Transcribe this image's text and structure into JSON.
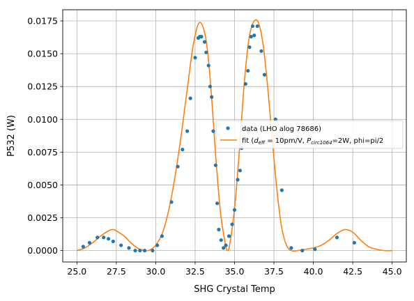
{
  "chart_data": {
    "type": "scatter",
    "title": "",
    "xlabel": "SHG Crystal Temp",
    "ylabel": "P532 (W)",
    "xlim": [
      24.1,
      45.9
    ],
    "ylim": [
      -0.00087,
      0.01835
    ],
    "xticks": [
      25.0,
      27.5,
      30.0,
      32.5,
      35.0,
      37.5,
      40.0,
      42.5,
      45.0
    ],
    "xtick_labels": [
      "25.0",
      "27.5",
      "30.0",
      "32.5",
      "35.0",
      "37.5",
      "40.0",
      "42.5",
      "45.0"
    ],
    "yticks": [
      0.0,
      0.0025,
      0.005,
      0.0075,
      0.01,
      0.0125,
      0.015,
      0.0175
    ],
    "ytick_labels": [
      "0.0000",
      "0.0025",
      "0.0050",
      "0.0075",
      "0.0100",
      "0.0125",
      "0.0150",
      "0.0175"
    ],
    "grid": true,
    "legend_position": "center-right",
    "series": [
      {
        "name": "data (LHO alog 78686)",
        "kind": "scatter",
        "color": "#1f77b4",
        "points": [
          [
            25.4,
            0.0003
          ],
          [
            25.8,
            0.0006
          ],
          [
            26.3,
            0.001
          ],
          [
            26.7,
            0.001
          ],
          [
            27.0,
            0.0009
          ],
          [
            27.3,
            0.0007
          ],
          [
            27.8,
            0.0004
          ],
          [
            28.3,
            0.0002
          ],
          [
            28.7,
            0.0
          ],
          [
            29.0,
            0.0
          ],
          [
            29.3,
            0.0
          ],
          [
            29.8,
            0.0
          ],
          [
            30.1,
            0.0004
          ],
          [
            30.4,
            0.0011
          ],
          [
            31.0,
            0.0037
          ],
          [
            31.4,
            0.0064
          ],
          [
            31.7,
            0.0077
          ],
          [
            32.0,
            0.0091
          ],
          [
            32.2,
            0.0116
          ],
          [
            32.5,
            0.0147
          ],
          [
            32.7,
            0.0162
          ],
          [
            32.8,
            0.0163
          ],
          [
            32.9,
            0.0163
          ],
          [
            33.1,
            0.0159
          ],
          [
            33.2,
            0.0151
          ],
          [
            33.35,
            0.0141
          ],
          [
            33.45,
            0.0125
          ],
          [
            33.55,
            0.0117
          ],
          [
            33.65,
            0.0091
          ],
          [
            33.8,
            0.0065
          ],
          [
            33.9,
            0.0036
          ],
          [
            34.0,
            0.0016
          ],
          [
            34.15,
            0.0008
          ],
          [
            34.3,
            0.0002
          ],
          [
            34.45,
            0.0004
          ],
          [
            34.65,
            0.0011
          ],
          [
            34.85,
            0.002
          ],
          [
            35.0,
            0.0031
          ],
          [
            35.2,
            0.0054
          ],
          [
            35.35,
            0.0061
          ],
          [
            35.45,
            0.0078
          ],
          [
            35.6,
            0.0093
          ],
          [
            35.7,
            0.0127
          ],
          [
            35.85,
            0.0137
          ],
          [
            35.95,
            0.0155
          ],
          [
            36.05,
            0.0163
          ],
          [
            36.15,
            0.0171
          ],
          [
            36.25,
            0.0164
          ],
          [
            36.45,
            0.0171
          ],
          [
            36.7,
            0.0152
          ],
          [
            36.9,
            0.0134
          ],
          [
            37.6,
            0.01
          ],
          [
            38.0,
            0.0046
          ],
          [
            38.6,
            0.0002
          ],
          [
            39.3,
            0.0
          ],
          [
            40.1,
            0.0001
          ],
          [
            41.5,
            0.001
          ],
          [
            42.6,
            0.0006
          ]
        ]
      },
      {
        "name": "fit (d_eff = 10pm/V, P_circ1064=2W, phi=pi/2",
        "kind": "line",
        "color": "#ff7f0e",
        "x": [
          25.0,
          25.5,
          26.0,
          26.5,
          27.0,
          27.3,
          27.5,
          28.0,
          28.5,
          29.0,
          29.5,
          30.0,
          30.5,
          31.0,
          31.5,
          32.0,
          32.4,
          32.8,
          33.2,
          33.5,
          33.8,
          34.1,
          34.4,
          34.55,
          34.7,
          35.0,
          35.3,
          35.6,
          35.9,
          36.2,
          36.5,
          36.8,
          37.1,
          37.4,
          37.7,
          38.0,
          38.3,
          38.6,
          39.0,
          39.5,
          40.0,
          40.5,
          41.0,
          41.5,
          42.0,
          42.5,
          43.0,
          43.5,
          44.0,
          44.5,
          45.0
        ],
        "y": [
          0.0,
          0.0002,
          0.0006,
          0.0011,
          0.0015,
          0.0016,
          0.0015,
          0.0011,
          0.0005,
          0.0001,
          0.0,
          0.0004,
          0.0016,
          0.0041,
          0.0078,
          0.0123,
          0.0158,
          0.0174,
          0.016,
          0.0124,
          0.0073,
          0.003,
          0.0006,
          0.0,
          0.0005,
          0.0032,
          0.0075,
          0.0125,
          0.016,
          0.0174,
          0.0174,
          0.0158,
          0.0125,
          0.0084,
          0.0045,
          0.0017,
          0.0004,
          0.0,
          0.0,
          0.0001,
          0.0002,
          0.0004,
          0.0008,
          0.0013,
          0.0016,
          0.0014,
          0.0008,
          0.0003,
          0.0001,
          0.0,
          0.0
        ]
      }
    ],
    "legend": {
      "data_label": "data (LHO alog 78686)",
      "fit_prefix": "fit (",
      "fit_d": "d",
      "fit_d_sub": "eff",
      "fit_mid": " = 10pm/V, ",
      "fit_p": "P",
      "fit_p_sub": "circ1064",
      "fit_tail": "=2W, phi=pi/2"
    },
    "colors": {
      "data": "#1f77b4",
      "fit": "#ff7f0e",
      "grid": "#b0b0b0"
    }
  }
}
